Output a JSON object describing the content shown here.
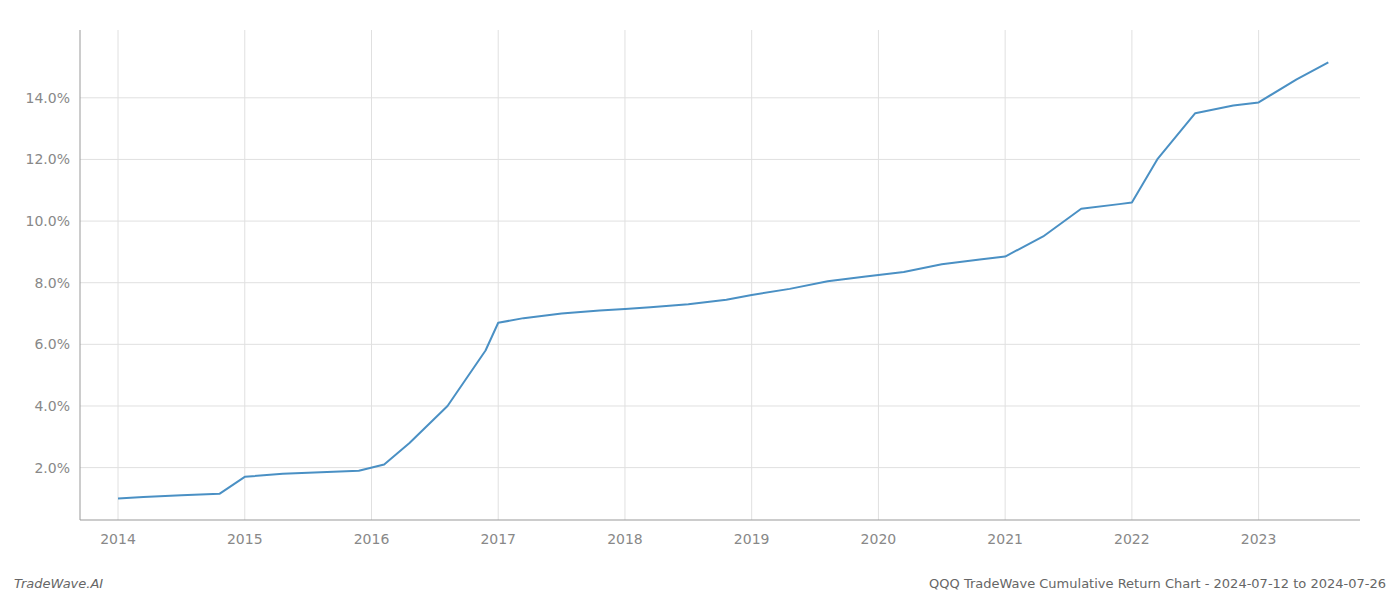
{
  "chart_data": {
    "type": "line",
    "x": [
      2014.0,
      2014.2,
      2014.5,
      2014.8,
      2015.0,
      2015.3,
      2015.6,
      2015.9,
      2016.1,
      2016.3,
      2016.6,
      2016.9,
      2017.0,
      2017.2,
      2017.5,
      2017.8,
      2018.0,
      2018.2,
      2018.5,
      2018.8,
      2019.0,
      2019.3,
      2019.6,
      2019.9,
      2020.0,
      2020.2,
      2020.5,
      2020.8,
      2021.0,
      2021.3,
      2021.6,
      2021.9,
      2022.0,
      2022.2,
      2022.5,
      2022.8,
      2023.0,
      2023.3,
      2023.55
    ],
    "values": [
      1.0,
      1.05,
      1.1,
      1.15,
      1.7,
      1.8,
      1.85,
      1.9,
      2.1,
      2.8,
      4.0,
      5.8,
      6.7,
      6.85,
      7.0,
      7.1,
      7.15,
      7.2,
      7.3,
      7.45,
      7.6,
      7.8,
      8.05,
      8.2,
      8.25,
      8.35,
      8.6,
      8.75,
      8.85,
      9.5,
      10.4,
      10.55,
      10.6,
      12.0,
      13.5,
      13.75,
      13.85,
      14.6,
      15.15
    ],
    "color": "#4a90c4",
    "xlim": [
      2013.7,
      2023.8
    ],
    "ylim": [
      0.3,
      16.2
    ],
    "xticks": [
      2014,
      2015,
      2016,
      2017,
      2018,
      2019,
      2020,
      2021,
      2022,
      2023
    ],
    "yticks": [
      {
        "value": 2.0,
        "label": "2.0%"
      },
      {
        "value": 4.0,
        "label": "4.0%"
      },
      {
        "value": 6.0,
        "label": "6.0%"
      },
      {
        "value": 8.0,
        "label": "8.0%"
      },
      {
        "value": 10.0,
        "label": "10.0%"
      },
      {
        "value": 12.0,
        "label": "12.0%"
      },
      {
        "value": 14.0,
        "label": "14.0%"
      }
    ],
    "grid": true,
    "annotations": [
      "TradeWave.AI",
      "QQQ TradeWave Cumulative Return Chart - 2024-07-12 to 2024-07-26"
    ]
  }
}
